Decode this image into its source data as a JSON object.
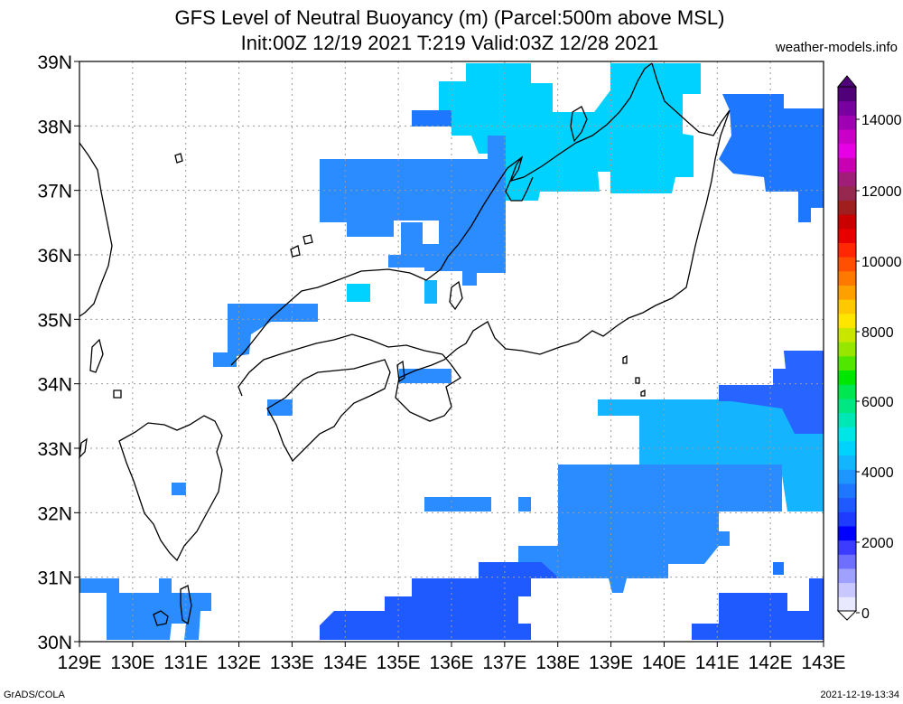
{
  "header": {
    "title_line1": "GFS Level of Neutral Buoyancy (m) (Parcel:500m above MSL)",
    "title_line2": "Init:00Z 12/19 2021 T:219 Valid:03Z 12/28 2021",
    "credit": "weather-models.info"
  },
  "footer": {
    "left": "GrADS/COLA",
    "right": "2021-12-19-13:34"
  },
  "axes": {
    "lon_labels": [
      "129E",
      "130E",
      "131E",
      "132E",
      "133E",
      "134E",
      "135E",
      "136E",
      "137E",
      "138E",
      "139E",
      "140E",
      "141E",
      "142E",
      "143E"
    ],
    "lat_labels": [
      "39N",
      "38N",
      "37N",
      "36N",
      "35N",
      "34N",
      "33N",
      "32N",
      "31N",
      "30N"
    ],
    "lon_range": [
      129,
      143
    ],
    "lat_range": [
      30,
      39
    ]
  },
  "colorbar": {
    "labels": [
      "14000",
      "12000",
      "10000",
      "8000",
      "6000",
      "4000",
      "2000",
      "0"
    ],
    "colors": [
      "#e8e8ff",
      "#c8c8ff",
      "#a0a0ff",
      "#6e6eff",
      "#3c3cff",
      "#0000ff",
      "#1e3cff",
      "#1e5aff",
      "#1e78ff",
      "#1e96ff",
      "#14b4ff",
      "#00d2ff",
      "#00e6e6",
      "#00e6b4",
      "#00e682",
      "#00e650",
      "#00e600",
      "#50e600",
      "#96e600",
      "#c8e600",
      "#ffe600",
      "#ffc800",
      "#ffa000",
      "#ff7800",
      "#ff5000",
      "#ff2800",
      "#e60000",
      "#c80000",
      "#a01e1e",
      "#962850",
      "#a01e78",
      "#c800b4",
      "#e600e6",
      "#c800c8",
      "#a000b4",
      "#7800a0",
      "#500078"
    ]
  },
  "field_colors": {
    "c1": "#2a8cff",
    "c2": "#1e5aff",
    "c3": "#1e78ff",
    "c4": "#00d2ff",
    "c5": "#14b4ff",
    "c6": "#2864ff"
  }
}
